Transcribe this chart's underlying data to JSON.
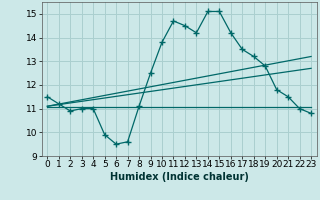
{
  "title": "",
  "xlabel": "Humidex (Indice chaleur)",
  "ylabel": "",
  "xlim": [
    -0.5,
    23.5
  ],
  "ylim": [
    9,
    15.5
  ],
  "yticks": [
    9,
    10,
    11,
    12,
    13,
    14,
    15
  ],
  "xticks": [
    0,
    1,
    2,
    3,
    4,
    5,
    6,
    7,
    8,
    9,
    10,
    11,
    12,
    13,
    14,
    15,
    16,
    17,
    18,
    19,
    20,
    21,
    22,
    23
  ],
  "background_color": "#cce8e8",
  "grid_color": "#aacfcf",
  "line_color": "#006868",
  "line1_x": [
    0,
    1,
    2,
    3,
    4,
    5,
    6,
    7,
    8,
    9,
    10,
    11,
    12,
    13,
    14,
    15,
    16,
    17,
    18,
    19,
    20,
    21,
    22,
    23
  ],
  "line1_y": [
    11.5,
    11.2,
    10.9,
    11.0,
    11.0,
    9.9,
    9.5,
    9.6,
    11.1,
    12.5,
    13.8,
    14.7,
    14.5,
    14.2,
    15.1,
    15.1,
    14.2,
    13.5,
    13.2,
    12.8,
    11.8,
    11.5,
    11.0,
    10.8
  ],
  "line2_x": [
    0,
    23
  ],
  "line2_y": [
    11.1,
    13.2
  ],
  "line3_x": [
    0,
    23
  ],
  "line3_y": [
    11.1,
    12.7
  ],
  "line4_x": [
    0,
    23
  ],
  "line4_y": [
    11.05,
    11.05
  ]
}
